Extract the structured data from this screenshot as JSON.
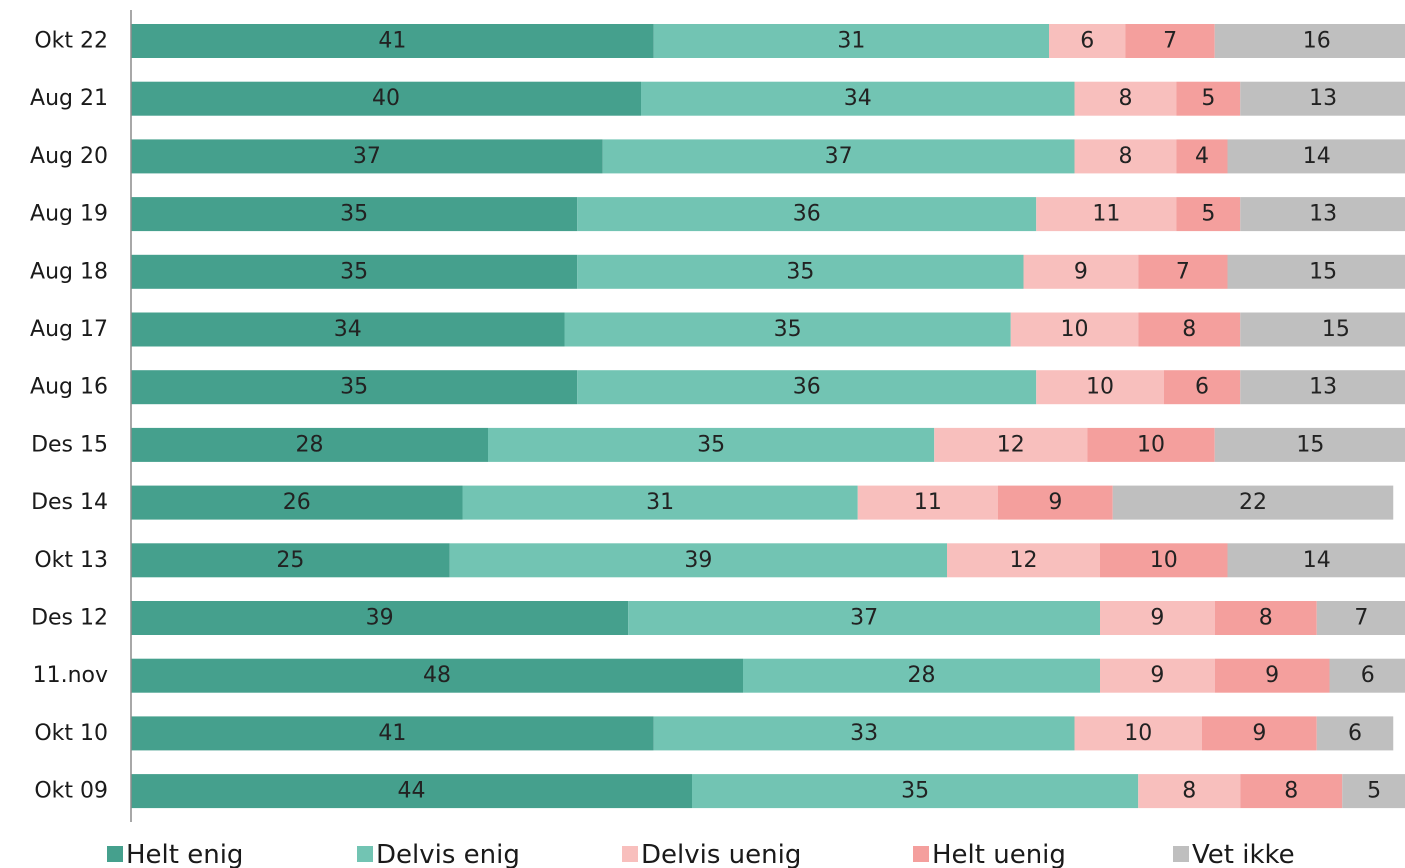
{
  "chart_data": {
    "type": "bar",
    "orientation": "horizontal",
    "stacked": true,
    "categories": [
      "Okt 22",
      "Aug 21",
      "Aug 20",
      "Aug 19",
      "Aug 18",
      "Aug 17",
      "Aug 16",
      "Des 15",
      "Des 14",
      "Okt 13",
      "Des 12",
      "11.nov",
      "Okt 10",
      "Okt 09"
    ],
    "series": [
      {
        "name": "Helt enig",
        "color": "#45a08d",
        "values": [
          41,
          40,
          37,
          35,
          35,
          34,
          35,
          28,
          26,
          25,
          39,
          48,
          41,
          44
        ]
      },
      {
        "name": "Delvis enig",
        "color": "#72c4b3",
        "values": [
          31,
          34,
          37,
          36,
          35,
          35,
          36,
          35,
          31,
          39,
          37,
          28,
          33,
          35
        ]
      },
      {
        "name": "Delvis uenig",
        "color": "#f8bfbd",
        "values": [
          6,
          8,
          8,
          11,
          9,
          10,
          10,
          12,
          11,
          12,
          9,
          9,
          10,
          8
        ]
      },
      {
        "name": "Helt uenig",
        "color": "#f49f9d",
        "values": [
          7,
          5,
          4,
          5,
          7,
          8,
          6,
          10,
          9,
          10,
          8,
          9,
          9,
          8
        ]
      },
      {
        "name": "Vet ikke",
        "color": "#bfbfbf",
        "values": [
          16,
          13,
          14,
          13,
          15,
          15,
          13,
          15,
          22,
          14,
          7,
          6,
          6,
          5
        ]
      }
    ],
    "title": "",
    "xlabel": "",
    "ylabel": "",
    "xlim": [
      0,
      100
    ],
    "grid": false,
    "legend": "bottom",
    "data_labels": true
  }
}
